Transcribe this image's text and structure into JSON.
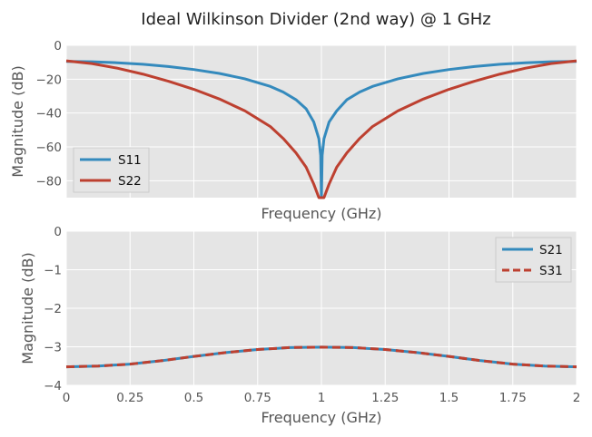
{
  "chart_data": [
    {
      "type": "line",
      "title": "Ideal Wilkinson Divider (2nd way) @ 1 GHz",
      "xlabel": "Frequency (GHz)",
      "ylabel": "Magnitude (dB)",
      "xlim": [
        0,
        2
      ],
      "ylim": [
        -90,
        0
      ],
      "yticks": [
        0,
        -20,
        -40,
        -60,
        -80
      ],
      "yticklabels": [
        "0",
        "−20",
        "−40",
        "−60",
        "−80"
      ],
      "grid": true,
      "legend_position": "lower-left",
      "x": [
        0,
        0.1,
        0.2,
        0.3,
        0.4,
        0.5,
        0.6,
        0.7,
        0.8,
        0.85,
        0.9,
        0.94,
        0.97,
        0.99,
        0.997,
        1.0,
        1.003,
        1.01,
        1.03,
        1.06,
        1.1,
        1.15,
        1.2,
        1.3,
        1.4,
        1.5,
        1.6,
        1.7,
        1.8,
        1.9,
        2.0
      ],
      "series": [
        {
          "name": "S11",
          "color": "#348ABD",
          "values": [
            -9.5,
            -9.7,
            -10.3,
            -11.2,
            -12.5,
            -14.3,
            -16.6,
            -19.8,
            -24.3,
            -27.6,
            -32.1,
            -37.5,
            -45.3,
            -55.2,
            -65.0,
            -90.0,
            -65.0,
            -55.2,
            -45.3,
            -38.7,
            -32.1,
            -27.6,
            -24.3,
            -19.8,
            -16.6,
            -14.3,
            -12.5,
            -11.2,
            -10.3,
            -9.7,
            -9.5
          ]
        },
        {
          "name": "S22",
          "color": "#BD4030",
          "values": [
            -9.2,
            -10.8,
            -13.5,
            -17.0,
            -21.2,
            -26.0,
            -31.7,
            -38.7,
            -48.0,
            -55.0,
            -63.5,
            -72.0,
            -82.0,
            -90.0,
            -90.0,
            -90.0,
            -90.0,
            -90.0,
            -82.0,
            -72.0,
            -63.5,
            -55.0,
            -48.0,
            -38.7,
            -31.7,
            -26.0,
            -21.2,
            -17.0,
            -13.5,
            -10.8,
            -9.2
          ]
        }
      ]
    },
    {
      "type": "line",
      "xlabel": "Frequency (GHz)",
      "ylabel": "Magnitude (dB)",
      "xlim": [
        0,
        2
      ],
      "ylim": [
        -4,
        0
      ],
      "xticks": [
        0,
        0.25,
        0.5,
        0.75,
        1,
        1.25,
        1.5,
        1.75,
        2
      ],
      "xticklabels": [
        "0",
        "0.25",
        "0.5",
        "0.75",
        "1",
        "1.25",
        "1.5",
        "1.75",
        "2"
      ],
      "yticks": [
        0,
        -1,
        -2,
        -3,
        -4
      ],
      "yticklabels": [
        "0",
        "−1",
        "−2",
        "−3",
        "−4"
      ],
      "grid": true,
      "legend_position": "upper-right",
      "x": [
        0,
        0.125,
        0.25,
        0.375,
        0.5,
        0.625,
        0.75,
        0.875,
        1.0,
        1.125,
        1.25,
        1.375,
        1.5,
        1.625,
        1.75,
        1.875,
        2.0
      ],
      "series": [
        {
          "name": "S21",
          "color": "#348ABD",
          "style": "solid",
          "values": [
            -3.52,
            -3.5,
            -3.45,
            -3.36,
            -3.25,
            -3.15,
            -3.07,
            -3.02,
            -3.01,
            -3.02,
            -3.07,
            -3.15,
            -3.25,
            -3.36,
            -3.45,
            -3.5,
            -3.52
          ]
        },
        {
          "name": "S31",
          "color": "#BD4030",
          "style": "dashed",
          "values": [
            -3.52,
            -3.5,
            -3.45,
            -3.36,
            -3.25,
            -3.15,
            -3.07,
            -3.02,
            -3.01,
            -3.02,
            -3.07,
            -3.15,
            -3.25,
            -3.36,
            -3.45,
            -3.5,
            -3.52
          ]
        }
      ]
    }
  ]
}
